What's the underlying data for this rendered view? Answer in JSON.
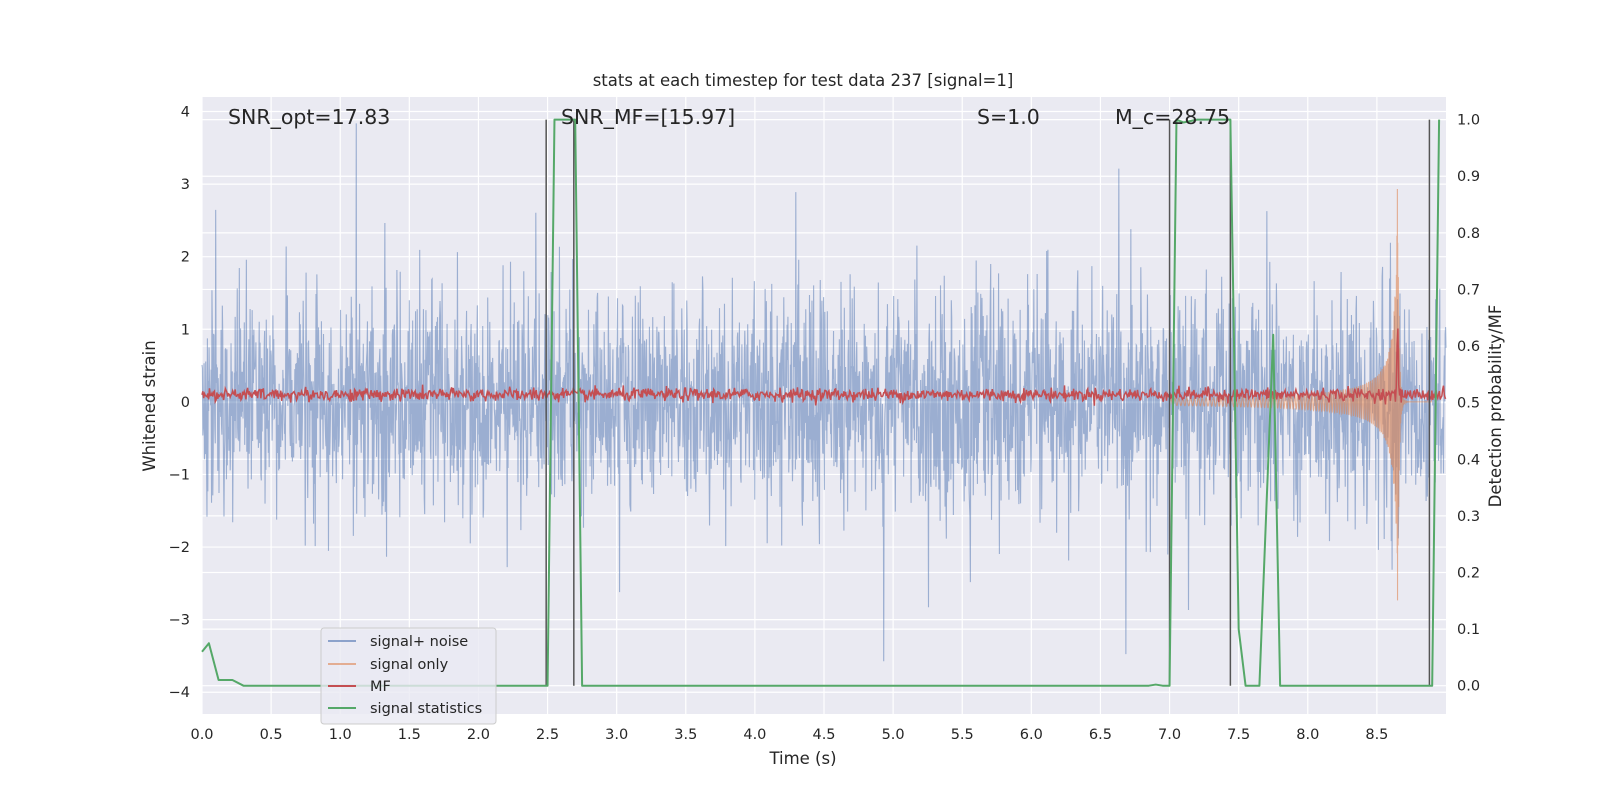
{
  "chart_data": {
    "type": "line",
    "title": "stats at each timestep for test data 237 [signal=1]",
    "xlabel": "Time (s)",
    "ylabel": "Whitened strain",
    "y2label": "Detection probability/MF",
    "xlim": [
      0.0,
      9.0
    ],
    "ylim": [
      -4.3,
      4.2
    ],
    "y2lim": [
      -0.05,
      1.04
    ],
    "x_ticks": [
      0.0,
      0.5,
      1.0,
      1.5,
      2.0,
      2.5,
      3.0,
      3.5,
      4.0,
      4.5,
      5.0,
      5.5,
      6.0,
      6.5,
      7.0,
      7.5,
      8.0,
      8.5
    ],
    "x_tick_labels": [
      "0.0",
      "0.5",
      "1.0",
      "1.5",
      "2.0",
      "2.5",
      "3.0",
      "3.5",
      "4.0",
      "4.5",
      "5.0",
      "5.5",
      "6.0",
      "6.5",
      "7.0",
      "7.5",
      "8.0",
      "8.5"
    ],
    "y_ticks": [
      -4,
      -3,
      -2,
      -1,
      0,
      1,
      2,
      3,
      4
    ],
    "y_tick_labels": [
      "−4",
      "−3",
      "−2",
      "−1",
      "0",
      "1",
      "2",
      "3",
      "4"
    ],
    "y2_ticks": [
      0.0,
      0.1,
      0.2,
      0.3,
      0.4,
      0.5,
      0.6,
      0.7,
      0.8,
      0.9,
      1.0
    ],
    "y2_tick_labels": [
      "0.0",
      "0.1",
      "0.2",
      "0.3",
      "0.4",
      "0.5",
      "0.6",
      "0.7",
      "0.8",
      "0.9",
      "1.0"
    ],
    "grid": true,
    "legend_position": "lower-left",
    "annotations": [
      {
        "text": "SNR_opt=17.83",
        "x": 0.2,
        "y": 3.85
      },
      {
        "text": "SNR_MF=[15.97]",
        "x": 2.6,
        "y": 3.85
      },
      {
        "text": "S=1.0",
        "x": 5.6,
        "y": 3.85
      },
      {
        "text": "M_c=28.75",
        "x": 6.6,
        "y": 3.85
      }
    ],
    "series": [
      {
        "name": "signal+ noise",
        "color": "#4c72b0",
        "axis": "left",
        "kind": "noise",
        "envelope_std": 0.75,
        "x_range": [
          0.0,
          9.0
        ]
      },
      {
        "name": "signal only",
        "color": "#dd8452",
        "axis": "left",
        "kind": "chirp",
        "merger_time": 8.65,
        "peak_amplitude": 3.3,
        "x_range": [
          7.0,
          8.9
        ]
      },
      {
        "name": "MF",
        "color": "#c44e52",
        "axis": "left",
        "kind": "mf",
        "baseline": 0.1,
        "spike_time": 8.65,
        "spike_value": 1.0
      },
      {
        "name": "signal statistics",
        "color": "#55a868",
        "axis": "right",
        "x": [
          0.0,
          0.05,
          0.12,
          0.22,
          0.3,
          1.0,
          2.0,
          2.48,
          2.5,
          2.55,
          2.65,
          2.7,
          2.75,
          2.78,
          3.5,
          5.0,
          6.0,
          6.85,
          6.9,
          6.95,
          7.0,
          7.05,
          7.1,
          7.2,
          7.3,
          7.44,
          7.5,
          7.55,
          7.65,
          7.75,
          7.8,
          7.85,
          8.0,
          8.5,
          8.88,
          8.9,
          8.95
        ],
        "y": [
          0.06,
          0.075,
          0.01,
          0.01,
          0.0,
          0.0,
          0.0,
          0.0,
          0.0,
          1.0,
          1.0,
          1.0,
          0.0,
          0.0,
          0.0,
          0.0,
          0.0,
          0.0,
          0.002,
          0.0,
          0.0,
          1.0,
          0.995,
          1.0,
          1.0,
          1.0,
          0.1,
          0.0,
          0.0,
          0.62,
          0.0,
          0.0,
          0.0,
          0.0,
          0.0,
          0.0,
          1.0
        ]
      }
    ],
    "vertical_markers": [
      {
        "x": 2.49,
        "y_range": [
          0.0,
          1.0
        ]
      },
      {
        "x": 2.69,
        "y_range": [
          0.0,
          1.0
        ]
      },
      {
        "x": 7.0,
        "y_range": [
          0.0,
          1.0
        ]
      },
      {
        "x": 7.44,
        "y_range": [
          0.0,
          1.0
        ]
      },
      {
        "x": 8.88,
        "y_range": [
          0.0,
          1.0
        ]
      }
    ]
  }
}
